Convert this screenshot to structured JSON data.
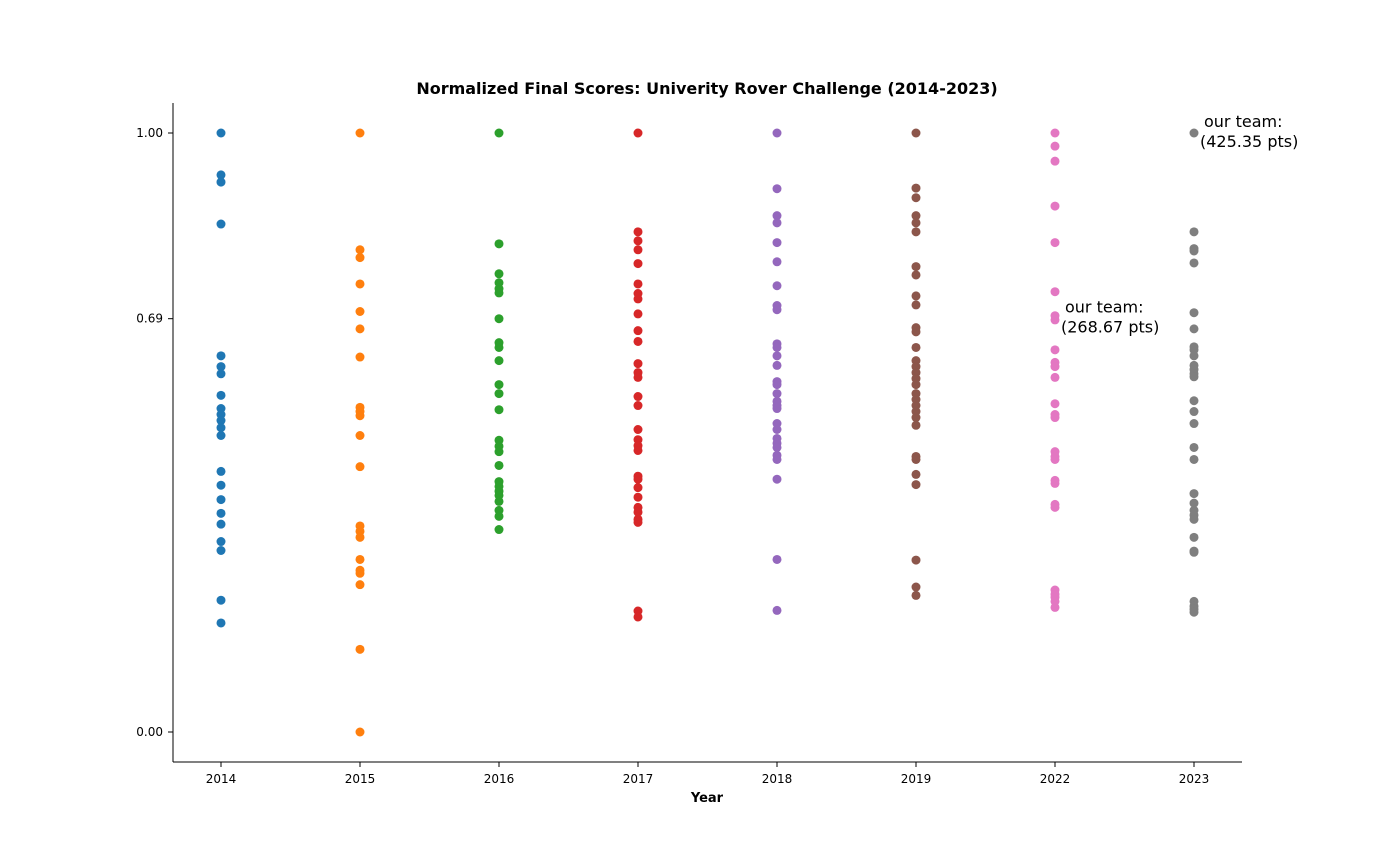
{
  "chart_data": {
    "type": "scatter",
    "title": "Normalized Final Scores: Univerity Rover Challenge (2014-2023)",
    "xlabel": "Year",
    "ylabel": "",
    "categories": [
      "2014",
      "2015",
      "2016",
      "2017",
      "2018",
      "2019",
      "2022",
      "2023"
    ],
    "yticks": [
      "0.00",
      "0.69",
      "1.00"
    ],
    "ylim": [
      -0.05,
      1.05
    ],
    "grid": false,
    "series": [
      {
        "category": "2014",
        "color": "#1f77b4",
        "values": [
          1.0,
          0.93,
          0.918,
          0.848,
          0.628,
          0.61,
          0.598,
          0.562,
          0.54,
          0.53,
          0.52,
          0.508,
          0.495,
          0.435,
          0.412,
          0.388,
          0.365,
          0.347,
          0.318,
          0.303,
          0.22,
          0.182
        ]
      },
      {
        "category": "2015",
        "color": "#ff7f0e",
        "values": [
          1.0,
          0.805,
          0.792,
          0.748,
          0.702,
          0.673,
          0.626,
          0.542,
          0.535,
          0.528,
          0.495,
          0.443,
          0.344,
          0.335,
          0.325,
          0.288,
          0.27,
          0.265,
          0.246,
          0.138,
          0.0
        ]
      },
      {
        "category": "2016",
        "color": "#2ca02c",
        "values": [
          1.0,
          0.815,
          0.765,
          0.75,
          0.74,
          0.733,
          0.69,
          0.65,
          0.642,
          0.62,
          0.58,
          0.565,
          0.538,
          0.487,
          0.477,
          0.468,
          0.445,
          0.418,
          0.41,
          0.402,
          0.395,
          0.385,
          0.37,
          0.36,
          0.338
        ]
      },
      {
        "category": "2017",
        "color": "#d72728",
        "values": [
          1.0,
          0.835,
          0.82,
          0.805,
          0.782,
          0.748,
          0.732,
          0.723,
          0.698,
          0.67,
          0.652,
          0.615,
          0.6,
          0.592,
          0.56,
          0.545,
          0.505,
          0.488,
          0.478,
          0.47,
          0.427,
          0.422,
          0.408,
          0.392,
          0.375,
          0.367,
          0.355,
          0.35,
          0.202,
          0.192
        ]
      },
      {
        "category": "2018",
        "color": "#9467bd",
        "values": [
          1.0,
          0.907,
          0.862,
          0.85,
          0.817,
          0.785,
          0.745,
          0.712,
          0.705,
          0.648,
          0.642,
          0.628,
          0.612,
          0.585,
          0.58,
          0.565,
          0.552,
          0.545,
          0.54,
          0.515,
          0.505,
          0.49,
          0.482,
          0.475,
          0.462,
          0.455,
          0.422,
          0.288,
          0.203
        ]
      },
      {
        "category": "2019",
        "color": "#8c564b",
        "values": [
          1.0,
          0.908,
          0.892,
          0.862,
          0.85,
          0.835,
          0.777,
          0.763,
          0.728,
          0.713,
          0.675,
          0.668,
          0.642,
          0.62,
          0.61,
          0.6,
          0.59,
          0.58,
          0.565,
          0.555,
          0.545,
          0.535,
          0.525,
          0.512,
          0.46,
          0.455,
          0.43,
          0.413,
          0.287,
          0.242,
          0.228
        ]
      },
      {
        "category": "2022",
        "color": "#e377c2",
        "values": [
          1.0,
          0.978,
          0.953,
          0.878,
          0.817,
          0.735,
          0.695,
          0.688,
          0.638,
          0.617,
          0.61,
          0.592,
          0.548,
          0.53,
          0.525,
          0.468,
          0.46,
          0.455,
          0.42,
          0.415,
          0.38,
          0.375,
          0.237,
          0.23,
          0.225,
          0.218,
          0.208
        ]
      },
      {
        "category": "2023",
        "color": "#7f7f7f",
        "values": [
          1.0,
          0.835,
          0.807,
          0.803,
          0.783,
          0.7,
          0.673,
          0.643,
          0.638,
          0.628,
          0.612,
          0.605,
          0.598,
          0.593,
          0.553,
          0.535,
          0.515,
          0.475,
          0.455,
          0.398,
          0.382,
          0.37,
          0.362,
          0.355,
          0.325,
          0.302,
          0.3,
          0.218,
          0.21,
          0.205,
          0.2
        ]
      }
    ],
    "annotations": [
      {
        "category": "2022",
        "y": 0.69,
        "line1": "our team:",
        "line2": "(268.67 pts)"
      },
      {
        "category": "2023",
        "y": 1.0,
        "line1": "our team:",
        "line2": "(425.35 pts)"
      }
    ]
  }
}
